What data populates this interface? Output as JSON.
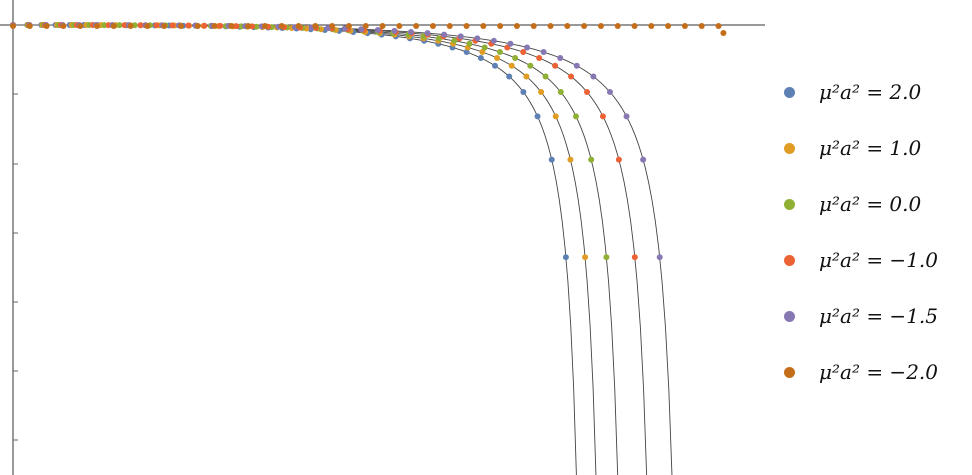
{
  "chart_data": {
    "type": "scatter",
    "title": "",
    "xlabel": "",
    "ylabel": "",
    "xlim": [
      0,
      1
    ],
    "ylim": [
      -1,
      0
    ],
    "grid": false,
    "legend_position": "right",
    "series": [
      {
        "name": "μ²a² = 2.0",
        "color": "#5E81B5",
        "root": 0.778
      },
      {
        "name": "μ²a² = 1.0",
        "color": "#E19C24",
        "root": 0.805
      },
      {
        "name": "μ²a² = 0.0",
        "color": "#8FB032",
        "root": 0.835
      },
      {
        "name": "μ²a² = −1.0",
        "color": "#EB6235",
        "root": 0.875
      },
      {
        "name": "μ²a² = −1.5",
        "color": "#8778B3",
        "root": 0.91
      },
      {
        "name": "μ²a² = −2.0",
        "color": "#C56E1A",
        "root": null
      }
    ]
  }
}
